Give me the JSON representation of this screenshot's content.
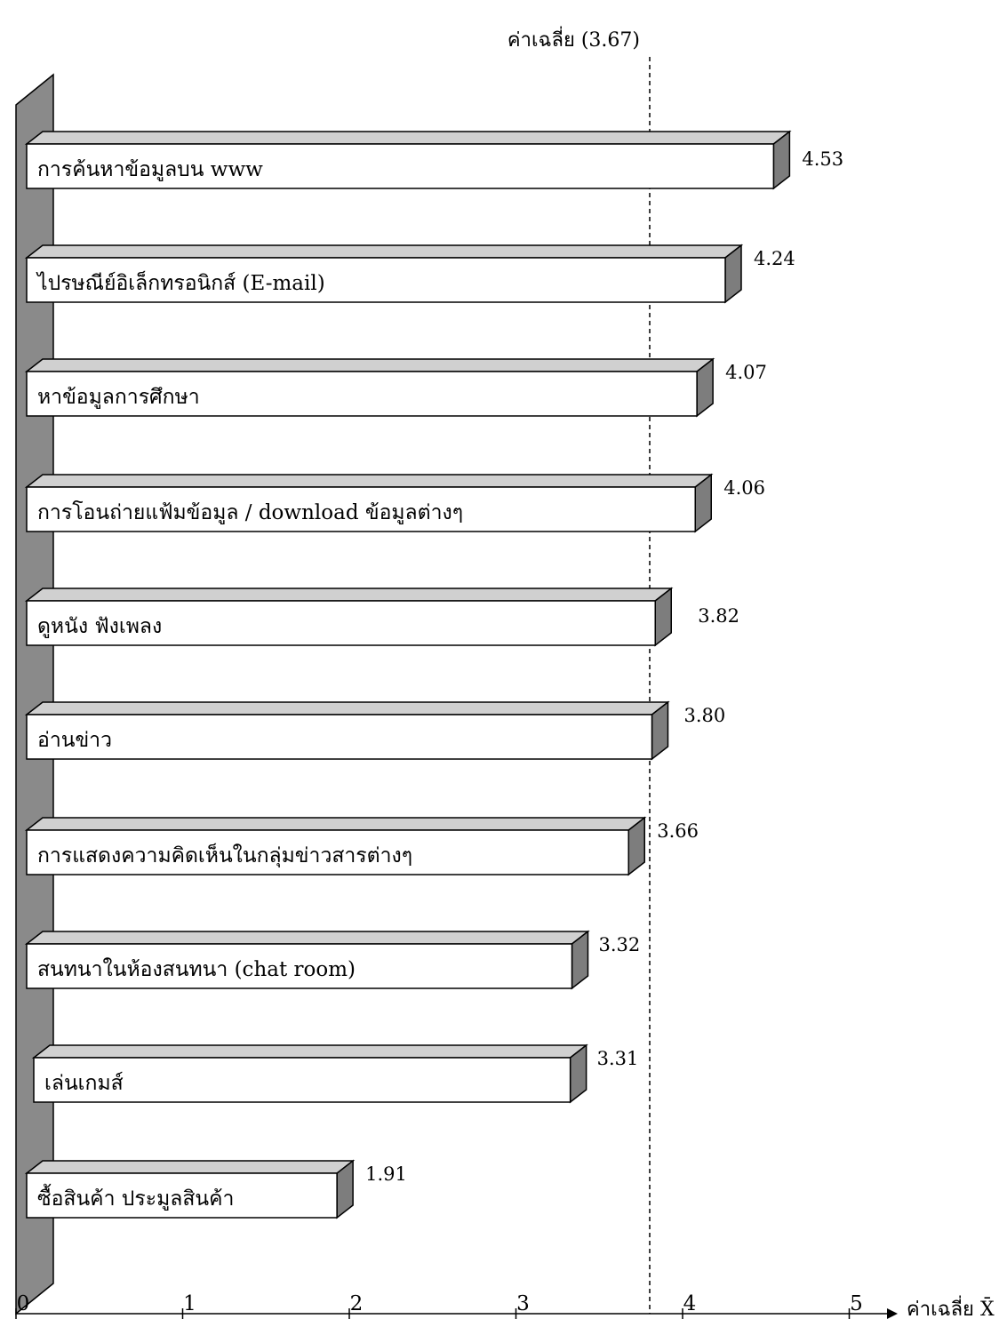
{
  "chart_data": {
    "type": "bar",
    "orientation": "horizontal",
    "categories": [
      "การค้นหาข้อมูลบน www",
      "ไปรษณีย์อิเล็กทรอนิกส์ (E-mail)",
      "หาข้อมูลการศึกษา",
      "การโอนถ่ายแฟ้มข้อมูล / download ข้อมูลต่างๆ",
      "ดูหนัง  ฟังเพลง",
      "อ่านข่าว",
      "การแสดงความคิดเห็นในกลุ่มข่าวสารต่างๆ",
      "สนทนาในห้องสนทนา  (chat room)",
      "เล่นเกมส์",
      "ซื้อสินค้า ประมูลสินค้า"
    ],
    "values": [
      4.53,
      4.24,
      4.07,
      4.06,
      3.82,
      3.8,
      3.66,
      3.32,
      3.31,
      1.91
    ],
    "value_labels": [
      "4.53",
      "4.24",
      "4.07",
      "4.06",
      "3.82",
      "3.80",
      "3.66",
      "3.32",
      "3.31",
      "1.91"
    ],
    "xlim": [
      0,
      5
    ],
    "x_ticks": [
      "0",
      "1",
      "2",
      "3",
      "4",
      "5"
    ],
    "xlabel": "ค่าเฉลี่ย X̄",
    "reference_line": {
      "value": 3.67,
      "label": "ค่าเฉลี่ย  (3.67)",
      "style": "dashed"
    },
    "style": "3d-bars",
    "colors": {
      "bar_face": "#ffffff",
      "bar_top": "#d0d0d0",
      "bar_side": "#7d7d7d",
      "wall": "#8a8a8a",
      "stroke": "#000000"
    }
  }
}
